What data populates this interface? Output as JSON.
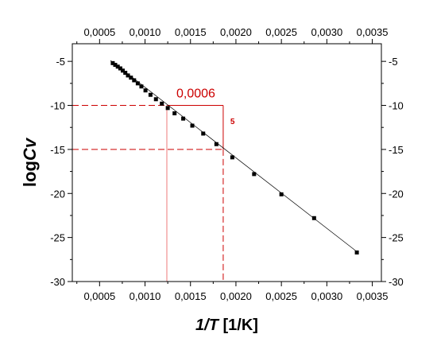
{
  "chart_data": {
    "type": "scatter",
    "title": "",
    "xlabel": {
      "symbol": "1/T",
      "unit": " [1/K]"
    },
    "ylabel": {
      "prefix": "log",
      "symbol": "Cv"
    },
    "xlim": [
      0.0002,
      0.0036
    ],
    "ylim": [
      -30,
      -3
    ],
    "x_ticks": [
      0.0005,
      0.001,
      0.0015,
      0.002,
      0.0025,
      0.003,
      0.0035
    ],
    "x_tick_labels": [
      "0,0005",
      "0,0010",
      "0,0015",
      "0,0020",
      "0,0025",
      "0,0030",
      "0,0035"
    ],
    "y_ticks": [
      -5,
      -10,
      -15,
      -20,
      -25,
      -30
    ],
    "y_tick_labels": [
      "-5",
      "-10",
      "-15",
      "-20",
      "-25",
      "-30"
    ],
    "top_axis_mirrored": true,
    "right_axis_mirrored": true,
    "grid": false,
    "line_color": "#000000",
    "marker_color": "#000000",
    "annotation_color": "#cc0000",
    "annotation_light_color": "#f4a6a6",
    "fit_line": {
      "x": [
        0.00062,
        0.00333
      ],
      "y": [
        -4.9,
        -26.6
      ]
    },
    "series": [
      {
        "x": [
          0.000645,
          0.000672,
          0.0007,
          0.000728,
          0.000755,
          0.000783,
          0.000812,
          0.000845,
          0.00088,
          0.00092,
          0.00096,
          0.001005,
          0.00106,
          0.00112,
          0.001185,
          0.00125,
          0.001325,
          0.00142,
          0.00152,
          0.00164,
          0.001785,
          0.00196,
          0.0022,
          0.0025,
          0.00286,
          0.00333
        ],
        "y": [
          -5.2,
          -5.4,
          -5.6,
          -5.8,
          -6.05,
          -6.3,
          -6.6,
          -6.85,
          -7.15,
          -7.5,
          -7.85,
          -8.3,
          -8.8,
          -9.3,
          -9.8,
          -10.3,
          -10.9,
          -11.5,
          -12.3,
          -13.2,
          -14.4,
          -15.9,
          -17.8,
          -20.1,
          -22.8,
          -26.7
        ]
      }
    ],
    "annotations": {
      "dx_label": "0,0006",
      "dy_label": "5",
      "x1": 0.00124,
      "x2": 0.00186,
      "y1": -10,
      "y2": -15
    }
  }
}
